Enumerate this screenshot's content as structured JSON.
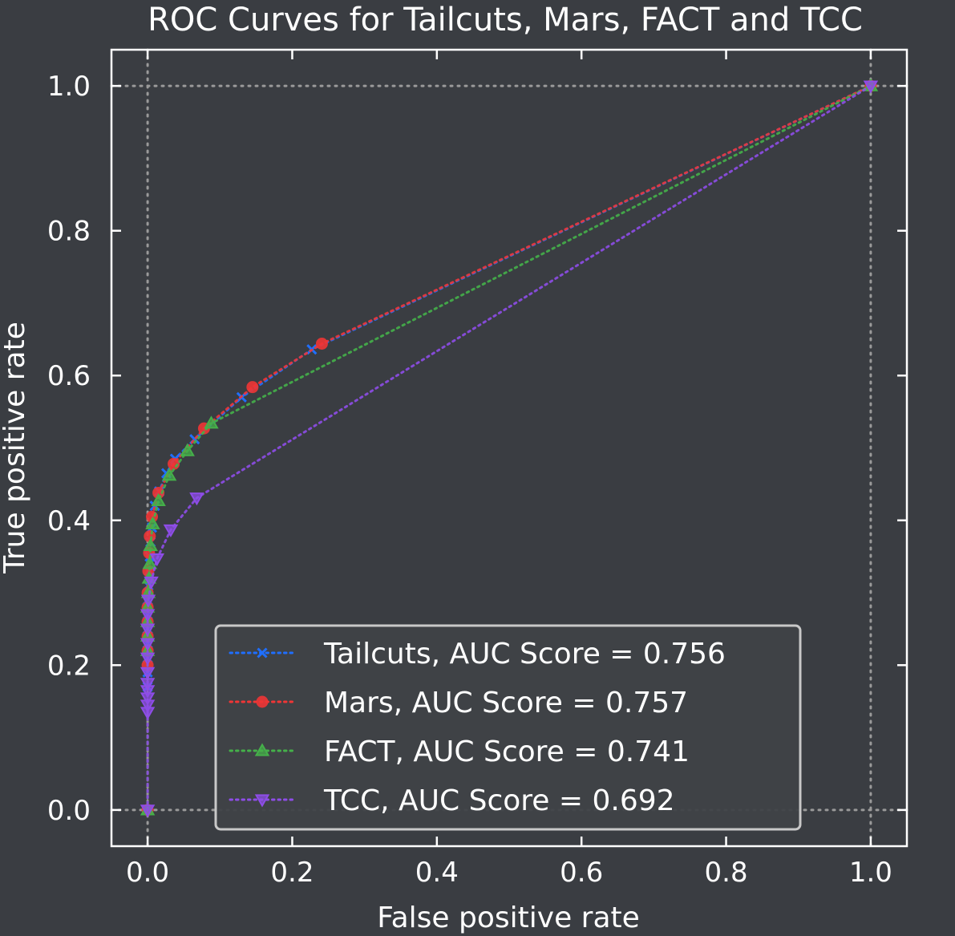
{
  "colors": {
    "background": "#3a3d42",
    "axes_fg": "#ffffff",
    "grid": "#9a9a9a",
    "legend_face": "#3f4247",
    "legend_edge": "#c8c8c8"
  },
  "chart_data": {
    "type": "line",
    "title": "ROC Curves for Tailcuts, Mars, FACT and TCC",
    "xlabel": "False positive rate",
    "ylabel": "True positive rate",
    "xlim": [
      -0.05,
      1.05
    ],
    "ylim": [
      -0.05,
      1.05
    ],
    "xticks": [
      "0.0",
      "0.2",
      "0.4",
      "0.6",
      "0.8",
      "1.0"
    ],
    "yticks": [
      "0.0",
      "0.2",
      "0.4",
      "0.6",
      "0.8",
      "1.0"
    ],
    "grid_lines": [
      0.0,
      1.0
    ],
    "legend_position": "lower-right",
    "series": [
      {
        "name": "Tailcuts, AUC Score = 0.756",
        "color": "#1f6fff",
        "marker": "x",
        "points": [
          [
            0,
            0
          ],
          [
            0,
            0.17
          ],
          [
            0,
            0.19
          ],
          [
            0,
            0.21
          ],
          [
            0,
            0.23
          ],
          [
            0,
            0.25
          ],
          [
            0,
            0.27
          ],
          [
            0,
            0.29
          ],
          [
            0.001,
            0.31
          ],
          [
            0.002,
            0.33
          ],
          [
            0.003,
            0.35
          ],
          [
            0.004,
            0.37
          ],
          [
            0.006,
            0.39
          ],
          [
            0.01,
            0.42
          ],
          [
            0.016,
            0.44
          ],
          [
            0.026,
            0.465
          ],
          [
            0.038,
            0.485
          ],
          [
            0.065,
            0.512
          ],
          [
            0.13,
            0.57
          ],
          [
            0.227,
            0.636
          ],
          [
            1,
            1
          ]
        ]
      },
      {
        "name": "Mars, AUC Score = 0.757",
        "color": "#f03535",
        "marker": "o",
        "points": [
          [
            0,
            0
          ],
          [
            0,
            0.2
          ],
          [
            0,
            0.22
          ],
          [
            0,
            0.24
          ],
          [
            0,
            0.26
          ],
          [
            0,
            0.28
          ],
          [
            0,
            0.3
          ],
          [
            0.001,
            0.33
          ],
          [
            0.002,
            0.355
          ],
          [
            0.003,
            0.378
          ],
          [
            0.006,
            0.405
          ],
          [
            0.015,
            0.438
          ],
          [
            0.036,
            0.478
          ],
          [
            0.078,
            0.527
          ],
          [
            0.145,
            0.584
          ],
          [
            0.241,
            0.644
          ],
          [
            1,
            1
          ]
        ]
      },
      {
        "name": "FACT, AUC Score = 0.741",
        "color": "#45b04a",
        "marker": "^",
        "points": [
          [
            0,
            0
          ],
          [
            0,
            0.22
          ],
          [
            0,
            0.24
          ],
          [
            0,
            0.26
          ],
          [
            0,
            0.28
          ],
          [
            0.001,
            0.3
          ],
          [
            0.002,
            0.32
          ],
          [
            0.003,
            0.34
          ],
          [
            0.004,
            0.365
          ],
          [
            0.007,
            0.395
          ],
          [
            0.015,
            0.427
          ],
          [
            0.03,
            0.462
          ],
          [
            0.055,
            0.496
          ],
          [
            0.088,
            0.534
          ],
          [
            1,
            1
          ]
        ]
      },
      {
        "name": "TCC, AUC Score = 0.692",
        "color": "#8e4de8",
        "marker": "v",
        "points": [
          [
            0,
            0
          ],
          [
            0,
            0.135
          ],
          [
            0,
            0.145
          ],
          [
            0,
            0.155
          ],
          [
            0,
            0.165
          ],
          [
            0,
            0.175
          ],
          [
            0,
            0.19
          ],
          [
            0,
            0.21
          ],
          [
            0,
            0.23
          ],
          [
            0,
            0.25
          ],
          [
            0,
            0.27
          ],
          [
            0.001,
            0.29
          ],
          [
            0.005,
            0.315
          ],
          [
            0.013,
            0.347
          ],
          [
            0.032,
            0.387
          ],
          [
            0.068,
            0.431
          ],
          [
            1,
            1
          ]
        ]
      }
    ]
  }
}
